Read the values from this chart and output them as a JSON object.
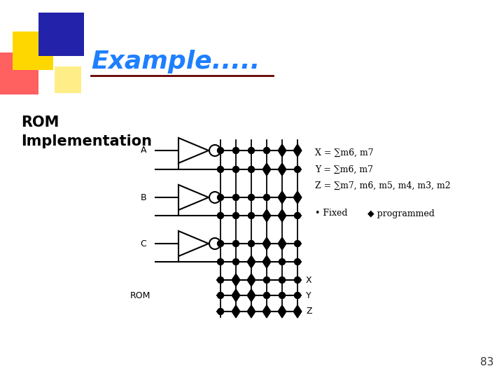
{
  "title": "Example.....",
  "title_color": "#1E7FFF",
  "bg_color": "#FFFFFF",
  "page_number": "83",
  "equations": [
    "X = ∑m6, m7",
    "Y = ∑m6, m7",
    "Z = ∑m7, m6, m5, m4, m3, m2"
  ],
  "legend_text1": "• Fixed",
  "legend_text2": "◆ programmed",
  "decoder_inputs": [
    "A",
    "B",
    "C"
  ],
  "output_labels": [
    "X",
    "Y",
    "Z"
  ],
  "rom_label": "ROM",
  "decoder_color": "#000000",
  "dot_color": "#000000",
  "line_color": "#000000",
  "logo_blue": "#2222AA",
  "logo_yellow": "#FFD700",
  "logo_red": "#FF4444",
  "logo_lightyellow": "#FFEE88",
  "title_dark_outline": "#660000"
}
